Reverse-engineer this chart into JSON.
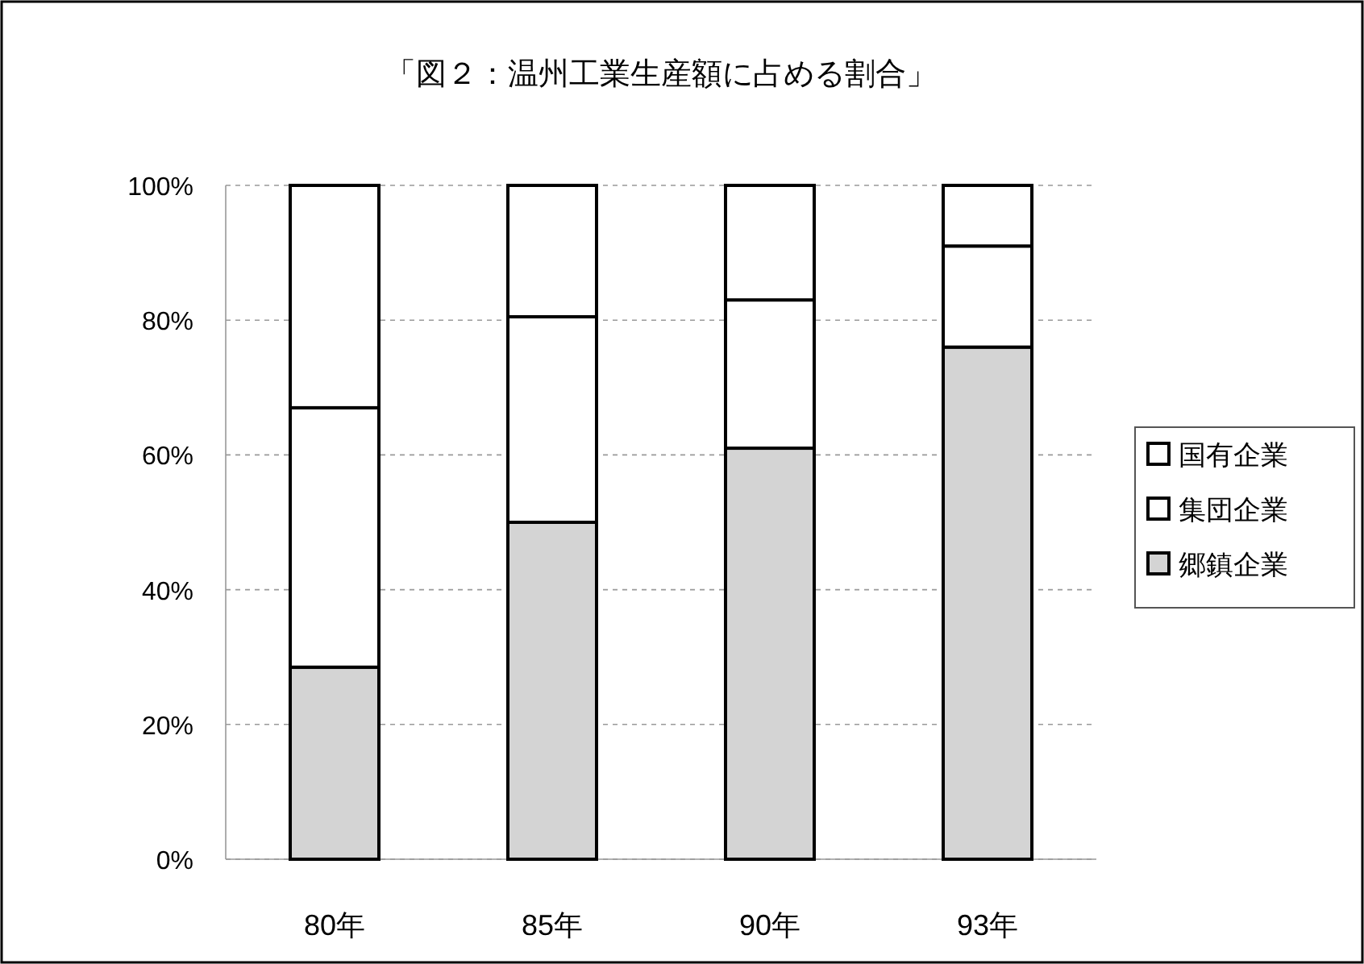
{
  "chart_data": {
    "type": "bar",
    "title": "「図２：温州工業生産額に占める割合」",
    "categories": [
      "80年",
      "85年",
      "90年",
      "93年"
    ],
    "stacked": true,
    "series": [
      {
        "name": "郷鎮企業",
        "color": "#d4d4d4",
        "values": [
          28.5,
          50,
          61,
          76
        ]
      },
      {
        "name": "集団企業",
        "color": "#ffffff",
        "values": [
          38.5,
          30.5,
          22,
          15
        ]
      },
      {
        "name": "国有企業",
        "color": "#ffffff",
        "values": [
          33,
          19.5,
          17,
          9
        ]
      }
    ],
    "ylim": [
      0,
      100
    ],
    "yticks": [
      {
        "value": 0,
        "label": "0%"
      },
      {
        "value": 20,
        "label": "20%"
      },
      {
        "value": 40,
        "label": "40%"
      },
      {
        "value": 60,
        "label": "60%"
      },
      {
        "value": 80,
        "label": "80%"
      },
      {
        "value": 100,
        "label": "100%"
      }
    ],
    "grid": "y",
    "legend": "right"
  }
}
